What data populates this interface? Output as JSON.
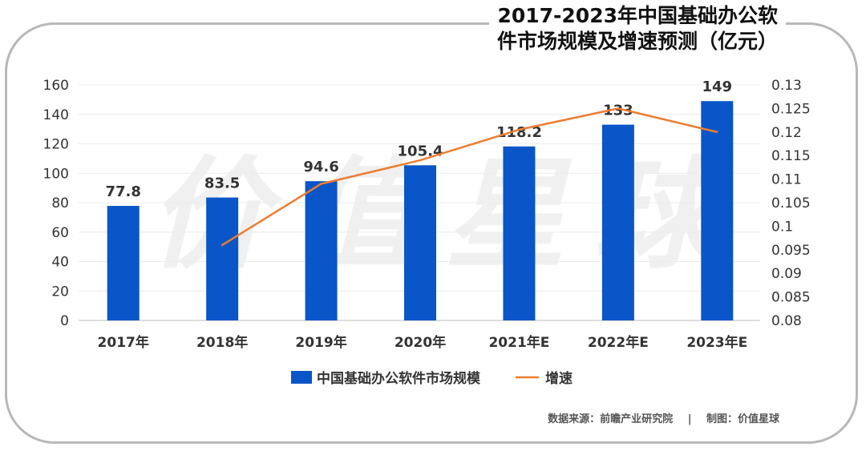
{
  "title_line1": "2017-2023年中国基础办公软",
  "title_line2": "件市场规模及增速预测（亿元）",
  "watermark": "价值星球",
  "footer": {
    "source": "数据来源：前瞻产业研究院",
    "sep": "|",
    "maker": "制图：价值星球"
  },
  "colors": {
    "bar": "#0a55c8",
    "line": "#ed7d31"
  },
  "chart_data": {
    "type": "bar",
    "title": "2017-2023年中国基础办公软件市场规模及增速预测（亿元）",
    "categories": [
      "2017年",
      "2018年",
      "2019年",
      "2020年",
      "2021年E",
      "2022年E",
      "2023年E"
    ],
    "series": [
      {
        "name": "中国基础办公软件市场规模",
        "type": "bar",
        "axis": "left",
        "values": [
          77.8,
          83.5,
          94.6,
          105.4,
          118.2,
          133,
          149
        ],
        "labels": [
          "77.8",
          "83.5",
          "94.6",
          "105.4",
          "118.2",
          "133",
          "149"
        ]
      },
      {
        "name": "增速",
        "type": "line",
        "axis": "right",
        "values": [
          null,
          0.096,
          0.109,
          0.114,
          0.1205,
          0.125,
          0.12
        ]
      }
    ],
    "ylim": [
      0,
      160
    ],
    "yticks": [
      "0",
      "20",
      "40",
      "60",
      "80",
      "100",
      "120",
      "140",
      "160"
    ],
    "y2lim": [
      0.08,
      0.13
    ],
    "y2ticks": [
      "0.08",
      "0.085",
      "0.09",
      "0.095",
      "0.1",
      "0.105",
      "0.11",
      "0.115",
      "0.12",
      "0.125",
      "0.13"
    ],
    "grid": true,
    "legend": "bottom"
  }
}
